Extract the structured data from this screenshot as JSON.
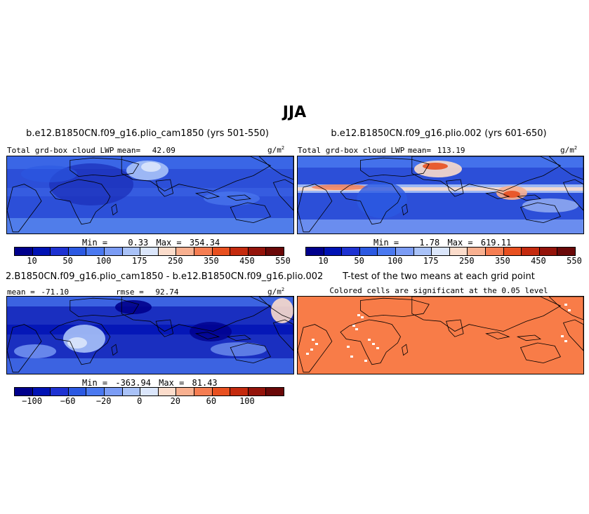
{
  "title": "JJA",
  "colors": {
    "seq": [
      "#00008c",
      "#0012b4",
      "#1e32d2",
      "#2c59e2",
      "#4b79f0",
      "#7b9cf5",
      "#a9c2f8",
      "#dbe6fb",
      "#fbdccb",
      "#f8b090",
      "#f57d52",
      "#e85020",
      "#c42a0e",
      "#94130a",
      "#6a0808"
    ],
    "div": [
      "#00008c",
      "#0012b4",
      "#1e32d2",
      "#2c59e2",
      "#4b79f0",
      "#7b9cf5",
      "#a9c2f8",
      "#dbe6fb",
      "#fbdccb",
      "#f8b090",
      "#f57d52",
      "#e85020",
      "#c42a0e",
      "#94130a",
      "#6a0808"
    ],
    "ocean_base": "#2c4fd8",
    "diff_base": "#1a2fc0",
    "ttest_fill": "#f87c48",
    "coast": "#000000"
  },
  "panels": {
    "p1": {
      "title": "b.e12.B1850CN.f09_g16.plio_cam1850 (yrs 501-550)",
      "subtitle": "Total grd-box cloud LWP",
      "mean_label": "mean=",
      "mean_value": "42.09",
      "units": "g/m",
      "units_exp": "2",
      "min_label": "Min =",
      "min_value": "0.33",
      "max_label": "Max =",
      "max_value": "354.34",
      "colorbar_ticks": [
        "10",
        "50",
        "100",
        "175",
        "250",
        "350",
        "450",
        "550"
      ]
    },
    "p2": {
      "title": "b.e12.B1850CN.f09_g16.plio.002 (yrs 601-650)",
      "subtitle": "Total grd-box cloud LWP",
      "mean_label": "mean=",
      "mean_value": "113.19",
      "units": "g/m",
      "units_exp": "2",
      "min_label": "Min =",
      "min_value": "1.78",
      "max_label": "Max =",
      "max_value": "619.11",
      "colorbar_ticks": [
        "10",
        "50",
        "100",
        "175",
        "250",
        "350",
        "450",
        "550"
      ]
    },
    "p3": {
      "title": "2.B1850CN.f09_g16.plio_cam1850 - b.e12.B1850CN.f09_g16.plio.002",
      "mean_label": "mean =",
      "mean_value": "-71.10",
      "rmse_label": "rmse =",
      "rmse_value": "92.74",
      "units": "g/m",
      "units_exp": "2",
      "min_label": "Min =",
      "min_value": "-363.94",
      "max_label": "Max =",
      "max_value": "81.43",
      "colorbar_ticks": [
        "−100",
        "−60",
        "−20",
        "0",
        "20",
        "60",
        "100"
      ]
    },
    "p4": {
      "title": "T-test of the two means at each grid point",
      "subtitle": "Colored cells are significant at the 0.05 level"
    }
  }
}
